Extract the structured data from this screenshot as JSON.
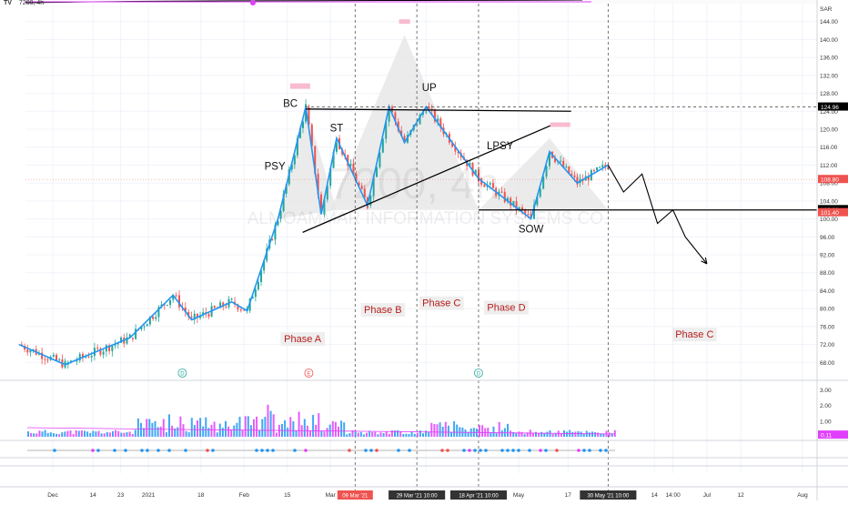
{
  "header": {
    "symbol_label": "7200, 4h",
    "logo_text": "TV"
  },
  "watermark": {
    "title": "7200, 4h",
    "subtitle": "ALMOAMMAR INFORMATION SYSTEMS CO."
  },
  "colors": {
    "up": "#26a69a",
    "down": "#ef5350",
    "wave": "#2196f3",
    "black": "#000000",
    "phase_text": "#b71c1c",
    "volume_up": "#2196f3",
    "volume_down": "#e040fb",
    "area_fill": "#e6e6e6",
    "grid": "#f0f3fa"
  },
  "chart_data": {
    "type": "candlestick",
    "title": "7200, 4h",
    "subtitle": "ALMOAMMAR INFORMATION SYSTEMS CO.",
    "y_axis": {
      "unit": "SAR",
      "ticks": [
        "144.00",
        "140.00",
        "136.00",
        "132.00",
        "128.00",
        "124.00",
        "120.00",
        "116.00",
        "112.00",
        "108.00",
        "104.00",
        "100.00",
        "96.00",
        "92.00",
        "88.00",
        "84.00",
        "80.00",
        "76.00",
        "72.00",
        "68.00"
      ],
      "range": [
        64,
        148
      ],
      "price_labels": [
        "124.96",
        "108.80",
        "102.08",
        "101.40"
      ]
    },
    "x_axis": {
      "ticks": [
        "Dec",
        "14",
        "23",
        "2021",
        "18",
        "Feb",
        "15",
        "Mar",
        "Apr",
        "May",
        "17",
        "14",
        "14:00",
        "Jul",
        "12",
        "Aug"
      ],
      "highlighted": [
        "09 Mar '21",
        "29 Mar '21",
        "10:00",
        "18 Apr '21",
        "10:00",
        "30 May '21",
        "10:00"
      ]
    },
    "annotations": {
      "wyckoff": [
        "PSY",
        "BC",
        "ST",
        "UP",
        "LPSY",
        "SOW"
      ],
      "phases": [
        "Phase A",
        "Phase B",
        "Phase C",
        "Phase D",
        "Phase C"
      ],
      "markers": [
        "D",
        "E",
        "D"
      ]
    },
    "wave_path": [
      [
        "Nov 20",
        72
      ],
      [
        "Dec 5",
        67.5
      ],
      [
        "Dec 26",
        73.5
      ],
      [
        "Jan 9",
        83
      ],
      [
        "Jan 15",
        77.5
      ],
      [
        "Jan 28",
        81.5
      ],
      [
        "Feb 2",
        79.5
      ],
      [
        "Feb 12",
        100
      ],
      [
        "Feb 21",
        125
      ],
      [
        "Feb 26",
        101
      ],
      [
        "Mar 3",
        118
      ],
      [
        "Mar 13",
        103
      ],
      [
        "Mar 20",
        125
      ],
      [
        "Mar 25",
        117
      ],
      [
        "Apr 1",
        125
      ],
      [
        "Apr 18",
        109
      ],
      [
        "May 5",
        100
      ],
      [
        "May 11",
        115
      ],
      [
        "May 20",
        108
      ],
      [
        "May 30",
        112
      ]
    ],
    "projection_path": [
      [
        "May 30",
        112
      ],
      [
        "Jun 4",
        106
      ],
      [
        "Jun 10",
        110
      ],
      [
        "Jun 15",
        99
      ],
      [
        "Jun 20",
        102
      ],
      [
        "Jun 24",
        96
      ],
      [
        "Jul 1",
        90
      ]
    ],
    "trendlines": [
      {
        "name": "resistance",
        "from": [
          "Feb 21",
          124.5
        ],
        "to": [
          "May 18",
          124
        ]
      },
      {
        "name": "support",
        "from": [
          "Feb 20",
          97
        ],
        "to": [
          "May 12",
          121
        ]
      },
      {
        "name": "sow-level",
        "from": [
          "Apr 18",
          102
        ],
        "to": [
          "Aug 15",
          102
        ]
      }
    ],
    "volume_scale": [
      "3.00",
      "2.00",
      "1.00"
    ],
    "volume_last": "0.11"
  }
}
